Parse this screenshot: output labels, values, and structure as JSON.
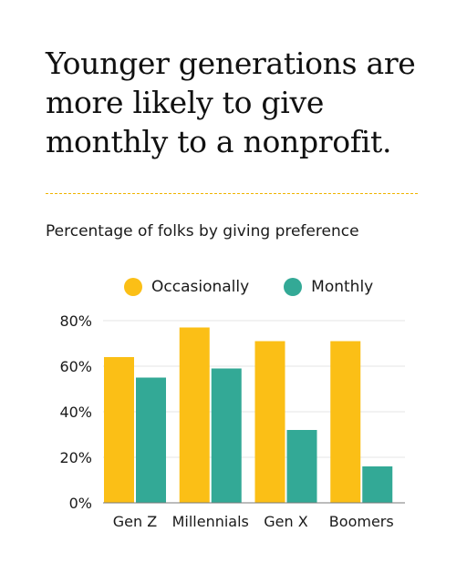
{
  "headline": "Younger generations are more likely to give monthly to a nonprofit.",
  "colors": {
    "occasionally": "#fbbf16",
    "monthly": "#33a996",
    "divider": "#f0b400",
    "grid": "#e6e6e6",
    "axis": "#7a7a7a"
  },
  "chart_data": {
    "type": "bar",
    "title": "Percentage of folks by giving preference",
    "xlabel": "",
    "ylabel": "",
    "categories": [
      "Gen Z",
      "Millennials",
      "Gen X",
      "Boomers"
    ],
    "series": [
      {
        "name": "Occasionally",
        "values": [
          64,
          77,
          71,
          71
        ]
      },
      {
        "name": "Monthly",
        "values": [
          55,
          59,
          32,
          16
        ]
      }
    ],
    "ylim": [
      0,
      80
    ],
    "yticks": [
      0,
      20,
      40,
      60,
      80
    ],
    "ytick_labels": [
      "0%",
      "20%",
      "40%",
      "60%",
      "80%"
    ],
    "grid": true,
    "legend_position": "top"
  }
}
